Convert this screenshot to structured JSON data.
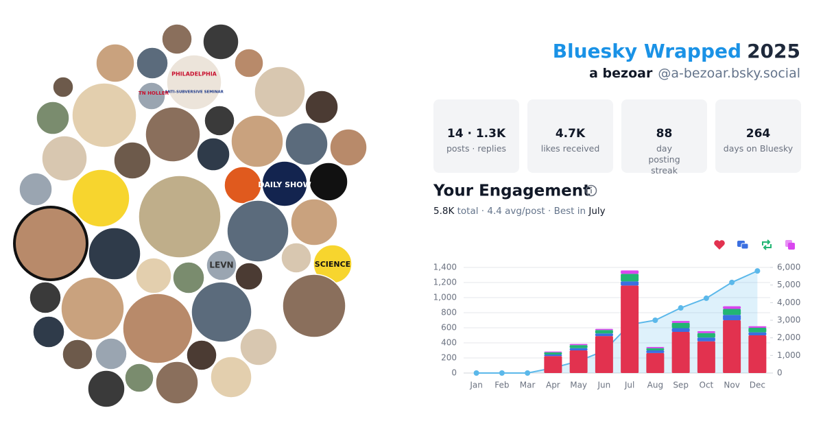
{
  "header": {
    "title": "Bluesky Wrapped",
    "year": "2025",
    "name": "a bezoar",
    "handle": "@a-bezoar.bsky.social"
  },
  "stats": [
    {
      "value": "14 · 1.3K",
      "label": "posts · replies"
    },
    {
      "value": "4.7K",
      "label": "likes received"
    },
    {
      "value": "88",
      "label": "day posting streak"
    },
    {
      "value": "264",
      "label": "days on Bluesky"
    }
  ],
  "engagement": {
    "title": "Your Engagement",
    "total": "5.8K",
    "total_label": "total ·",
    "avg": "4.4 avg/post ·",
    "best_label": "Best in",
    "best": "July"
  },
  "avatar_labels": [
    "PHILADELPHIA",
    "ANTI-SUBVERSIVE SEMINAR",
    "TN HOLLER",
    "DAILY SHOW",
    "SCIENCE",
    "LEVN"
  ],
  "chart_data": {
    "type": "bar",
    "stacked": true,
    "grid": true,
    "categories": [
      "Jan",
      "Feb",
      "Mar",
      "Apr",
      "May",
      "Jun",
      "Jul",
      "Aug",
      "Sep",
      "Oct",
      "Nov",
      "Dec"
    ],
    "series": [
      {
        "color": "#e2324f",
        "values": [
          0,
          0,
          0,
          225,
          300,
          490,
          1160,
          265,
          545,
          420,
          700,
          500
        ]
      },
      {
        "color": "#3b6fe0",
        "values": [
          0,
          0,
          0,
          20,
          30,
          35,
          55,
          35,
          50,
          50,
          70,
          40
        ]
      },
      {
        "color": "#22b573",
        "values": [
          0,
          0,
          0,
          30,
          40,
          45,
          100,
          30,
          70,
          60,
          80,
          60
        ]
      },
      {
        "color": "#d946ef",
        "values": [
          0,
          0,
          0,
          10,
          15,
          15,
          45,
          15,
          25,
          25,
          35,
          20
        ]
      },
      {
        "color": "#5bb8ea",
        "axis": "y2",
        "type": "area",
        "values": [
          0,
          0,
          0,
          290,
          680,
          1260,
          2750,
          3000,
          3700,
          4250,
          5150,
          5800
        ]
      }
    ],
    "ylim": [
      0,
      1400
    ],
    "yticks": [
      0,
      200,
      400,
      600,
      800,
      {
        "value": 1000,
        "label": "1,000"
      },
      {
        "value": 1200,
        "label": "1,200"
      },
      {
        "value": 1400,
        "label": "1,400"
      }
    ],
    "y2lim": [
      0,
      6000
    ],
    "y2ticks": [
      0,
      {
        "value": 1000,
        "label": "1,000"
      },
      {
        "value": 2000,
        "label": "2,000"
      },
      {
        "value": 3000,
        "label": "3,000"
      },
      {
        "value": 4000,
        "label": "4,000"
      },
      {
        "value": 5000,
        "label": "5,000"
      },
      {
        "value": 6000,
        "label": "6,000"
      }
    ]
  }
}
